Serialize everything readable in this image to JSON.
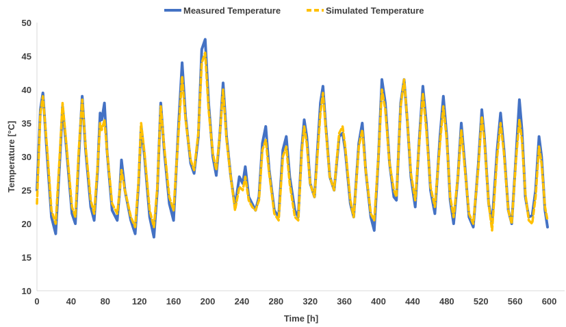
{
  "chart_data": {
    "type": "line",
    "xlabel": "Time [h]",
    "ylabel": "Temperature [°C]",
    "xlim": [
      0,
      618
    ],
    "ylim": [
      10,
      50
    ],
    "x_ticks": [
      0,
      40,
      80,
      120,
      160,
      200,
      240,
      280,
      320,
      360,
      400,
      440,
      480,
      520,
      560,
      600
    ],
    "y_ticks": [
      10,
      15,
      20,
      25,
      30,
      35,
      40,
      45,
      50
    ],
    "grid": false,
    "legend_position": "top-center",
    "series": [
      {
        "name": "Measured Temperature",
        "color": "#4472C4",
        "style": "solid",
        "points": [
          [
            0,
            25
          ],
          [
            4,
            37
          ],
          [
            7,
            39.5
          ],
          [
            12,
            30
          ],
          [
            17,
            21
          ],
          [
            22,
            18.5
          ],
          [
            27,
            30
          ],
          [
            30,
            37.5
          ],
          [
            34,
            32
          ],
          [
            41,
            21.5
          ],
          [
            45,
            20
          ],
          [
            49,
            30
          ],
          [
            53,
            39
          ],
          [
            57,
            31
          ],
          [
            63,
            22.5
          ],
          [
            67,
            20.5
          ],
          [
            71,
            28
          ],
          [
            74,
            36.5
          ],
          [
            76,
            35.5
          ],
          [
            79,
            38
          ],
          [
            82,
            31
          ],
          [
            88,
            22
          ],
          [
            94,
            20.5
          ],
          [
            97,
            25
          ],
          [
            99,
            29.5
          ],
          [
            103,
            25
          ],
          [
            110,
            20.5
          ],
          [
            115,
            18.5
          ],
          [
            119,
            26
          ],
          [
            122,
            34.5
          ],
          [
            126,
            30
          ],
          [
            132,
            21
          ],
          [
            137,
            18
          ],
          [
            141,
            25
          ],
          [
            145,
            38
          ],
          [
            149,
            31
          ],
          [
            155,
            23
          ],
          [
            160,
            20.5
          ],
          [
            166,
            35
          ],
          [
            170,
            44
          ],
          [
            174,
            36
          ],
          [
            180,
            29
          ],
          [
            184,
            27.5
          ],
          [
            189,
            33
          ],
          [
            193,
            46
          ],
          [
            197,
            47.5
          ],
          [
            201,
            38
          ],
          [
            206,
            30
          ],
          [
            210,
            27.2
          ],
          [
            214,
            33
          ],
          [
            218,
            41
          ],
          [
            222,
            33
          ],
          [
            227,
            27
          ],
          [
            232,
            22.5
          ],
          [
            237,
            27
          ],
          [
            241,
            26
          ],
          [
            244,
            28.5
          ],
          [
            248,
            24
          ],
          [
            252,
            23
          ],
          [
            256,
            22
          ],
          [
            260,
            24
          ],
          [
            264,
            32
          ],
          [
            268,
            34.5
          ],
          [
            272,
            28
          ],
          [
            278,
            22
          ],
          [
            283,
            21
          ],
          [
            288,
            31
          ],
          [
            292,
            33
          ],
          [
            296,
            27
          ],
          [
            302,
            22
          ],
          [
            306,
            21
          ],
          [
            310,
            31
          ],
          [
            313,
            35.5
          ],
          [
            316,
            33
          ],
          [
            320,
            26
          ],
          [
            325,
            24
          ],
          [
            332,
            38
          ],
          [
            335,
            40.5
          ],
          [
            338,
            35
          ],
          [
            343,
            27
          ],
          [
            348,
            25
          ],
          [
            354,
            33
          ],
          [
            358,
            33.5
          ],
          [
            361,
            31
          ],
          [
            367,
            23
          ],
          [
            371,
            21
          ],
          [
            377,
            32
          ],
          [
            381,
            35
          ],
          [
            385,
            28
          ],
          [
            391,
            21
          ],
          [
            395,
            19
          ],
          [
            400,
            30
          ],
          [
            404,
            41.5
          ],
          [
            408,
            38
          ],
          [
            413,
            29
          ],
          [
            418,
            24
          ],
          [
            421,
            23.5
          ],
          [
            426,
            38
          ],
          [
            430,
            41.5
          ],
          [
            434,
            35
          ],
          [
            438,
            27
          ],
          [
            443,
            22.5
          ],
          [
            448,
            33
          ],
          [
            452,
            40.5
          ],
          [
            456,
            35
          ],
          [
            461,
            25
          ],
          [
            466,
            21.5
          ],
          [
            472,
            33
          ],
          [
            476,
            39
          ],
          [
            480,
            33
          ],
          [
            484,
            23.5
          ],
          [
            488,
            20
          ],
          [
            493,
            27
          ],
          [
            497,
            35
          ],
          [
            501,
            29
          ],
          [
            506,
            21
          ],
          [
            511,
            19.5
          ],
          [
            517,
            29
          ],
          [
            521,
            37
          ],
          [
            524,
            33
          ],
          [
            529,
            23
          ],
          [
            533,
            20
          ],
          [
            539,
            31
          ],
          [
            543,
            36.5
          ],
          [
            547,
            31
          ],
          [
            552,
            22
          ],
          [
            556,
            20
          ],
          [
            561,
            30
          ],
          [
            565,
            38.5
          ],
          [
            568,
            34
          ],
          [
            572,
            24
          ],
          [
            576,
            21
          ],
          [
            580,
            21.2
          ],
          [
            584,
            25
          ],
          [
            588,
            33
          ],
          [
            591,
            30
          ],
          [
            595,
            22
          ],
          [
            598,
            19.5
          ]
        ]
      },
      {
        "name": "Simulated Temperature",
        "color": "#FFC000",
        "style": "dashed",
        "points": [
          [
            0,
            23
          ],
          [
            4,
            36.5
          ],
          [
            7,
            39
          ],
          [
            12,
            31
          ],
          [
            17,
            22
          ],
          [
            22,
            20
          ],
          [
            27,
            31
          ],
          [
            30,
            38
          ],
          [
            34,
            32.5
          ],
          [
            41,
            22.5
          ],
          [
            45,
            21
          ],
          [
            49,
            31
          ],
          [
            53,
            38.5
          ],
          [
            57,
            31.5
          ],
          [
            63,
            23.5
          ],
          [
            67,
            21.5
          ],
          [
            71,
            28.5
          ],
          [
            74,
            35
          ],
          [
            76,
            34
          ],
          [
            79,
            35.5
          ],
          [
            82,
            31
          ],
          [
            88,
            23
          ],
          [
            94,
            21.5
          ],
          [
            97,
            25
          ],
          [
            99,
            28
          ],
          [
            103,
            25
          ],
          [
            110,
            21
          ],
          [
            115,
            19.5
          ],
          [
            119,
            26.5
          ],
          [
            122,
            35
          ],
          [
            126,
            30.5
          ],
          [
            132,
            22
          ],
          [
            137,
            19.5
          ],
          [
            141,
            25.5
          ],
          [
            145,
            37.5
          ],
          [
            149,
            31.5
          ],
          [
            155,
            24
          ],
          [
            160,
            22
          ],
          [
            166,
            34
          ],
          [
            170,
            42
          ],
          [
            174,
            35.5
          ],
          [
            180,
            29.5
          ],
          [
            184,
            28
          ],
          [
            189,
            33.5
          ],
          [
            193,
            44
          ],
          [
            197,
            45.5
          ],
          [
            201,
            37
          ],
          [
            206,
            30.5
          ],
          [
            210,
            28
          ],
          [
            214,
            33
          ],
          [
            218,
            40
          ],
          [
            222,
            32.5
          ],
          [
            227,
            27
          ],
          [
            232,
            22
          ],
          [
            237,
            25.5
          ],
          [
            241,
            25
          ],
          [
            244,
            27
          ],
          [
            248,
            23.5
          ],
          [
            252,
            22.5
          ],
          [
            256,
            22
          ],
          [
            260,
            23.5
          ],
          [
            264,
            31
          ],
          [
            268,
            32.5
          ],
          [
            272,
            27.5
          ],
          [
            278,
            21.5
          ],
          [
            283,
            20.5
          ],
          [
            288,
            30
          ],
          [
            292,
            31.5
          ],
          [
            296,
            26
          ],
          [
            302,
            21
          ],
          [
            306,
            20.5
          ],
          [
            310,
            30.5
          ],
          [
            313,
            34.5
          ],
          [
            316,
            32
          ],
          [
            320,
            26
          ],
          [
            325,
            24
          ],
          [
            332,
            36.5
          ],
          [
            335,
            39.5
          ],
          [
            338,
            34.5
          ],
          [
            343,
            27
          ],
          [
            348,
            25
          ],
          [
            354,
            33.5
          ],
          [
            358,
            34.5
          ],
          [
            361,
            31.5
          ],
          [
            367,
            23.5
          ],
          [
            371,
            21
          ],
          [
            377,
            31.5
          ],
          [
            381,
            34
          ],
          [
            385,
            28
          ],
          [
            391,
            21.5
          ],
          [
            395,
            20.5
          ],
          [
            400,
            30
          ],
          [
            404,
            40
          ],
          [
            408,
            37
          ],
          [
            413,
            29
          ],
          [
            418,
            25
          ],
          [
            421,
            24
          ],
          [
            426,
            37.5
          ],
          [
            430,
            41.5
          ],
          [
            434,
            35
          ],
          [
            438,
            27.5
          ],
          [
            443,
            23.5
          ],
          [
            448,
            32.5
          ],
          [
            452,
            39.5
          ],
          [
            456,
            34
          ],
          [
            461,
            25.5
          ],
          [
            466,
            22.5
          ],
          [
            472,
            32
          ],
          [
            476,
            37.5
          ],
          [
            480,
            32.5
          ],
          [
            484,
            24
          ],
          [
            488,
            21
          ],
          [
            493,
            27
          ],
          [
            497,
            34
          ],
          [
            501,
            28.5
          ],
          [
            506,
            21.5
          ],
          [
            511,
            20
          ],
          [
            517,
            28.5
          ],
          [
            521,
            36
          ],
          [
            524,
            32.5
          ],
          [
            529,
            23
          ],
          [
            533,
            19
          ],
          [
            539,
            30
          ],
          [
            543,
            35
          ],
          [
            547,
            30.5
          ],
          [
            552,
            22
          ],
          [
            556,
            20
          ],
          [
            561,
            29.5
          ],
          [
            565,
            35.5
          ],
          [
            568,
            32.5
          ],
          [
            572,
            24.5
          ],
          [
            576,
            20.5
          ],
          [
            580,
            20
          ],
          [
            584,
            24
          ],
          [
            588,
            31.5
          ],
          [
            591,
            29
          ],
          [
            595,
            22.5
          ],
          [
            598,
            20.5
          ]
        ]
      }
    ]
  }
}
